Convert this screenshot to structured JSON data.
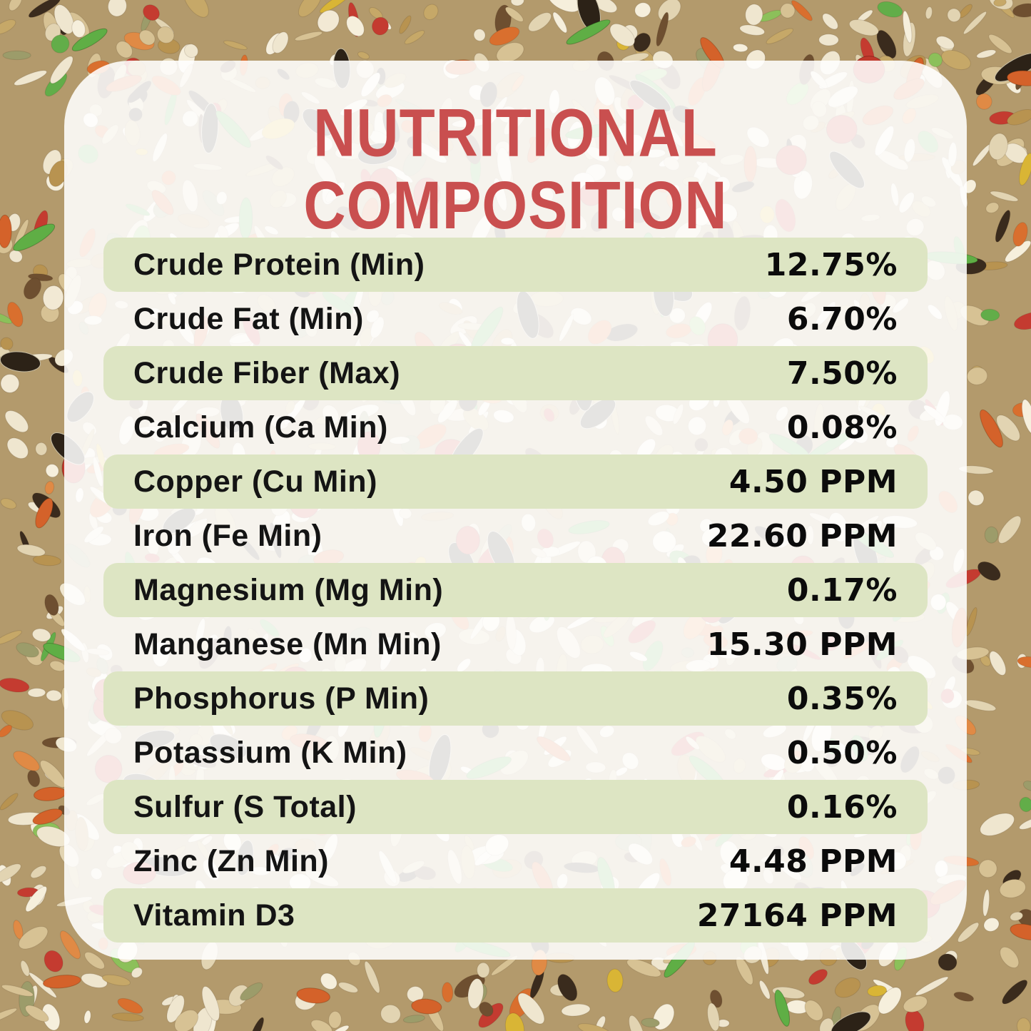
{
  "page": {
    "title": "NUTRITIONAL COMPOSITION"
  },
  "table": {
    "rows": [
      {
        "label": "Crude Protein (Min)",
        "value": "12.75%"
      },
      {
        "label": "Crude Fat (Min)",
        "value": "6.70%"
      },
      {
        "label": "Crude Fiber (Max)",
        "value": "7.50%"
      },
      {
        "label": "Calcium (Ca Min)",
        "value": "0.08%"
      },
      {
        "label": "Copper (Cu Min)",
        "value": "4.50 PPM"
      },
      {
        "label": "Iron (Fe Min)",
        "value": "22.60 PPM"
      },
      {
        "label": "Magnesium (Mg Min)",
        "value": "0.17%"
      },
      {
        "label": "Manganese (Mn Min)",
        "value": "15.30 PPM"
      },
      {
        "label": "Phosphorus (P Min)",
        "value": "0.35%"
      },
      {
        "label": "Potassium (K Min)",
        "value": "0.50%"
      },
      {
        "label": "Sulfur (S Total)",
        "value": "0.16%"
      },
      {
        "label": "Zinc (Zn Min)",
        "value": "4.48 PPM"
      },
      {
        "label": "Vitamin D3",
        "value": "27164 PPM"
      }
    ]
  },
  "colors": {
    "title_red": "#c94f4f",
    "row_green": "#dde5c3",
    "text_dark": "#141414"
  }
}
